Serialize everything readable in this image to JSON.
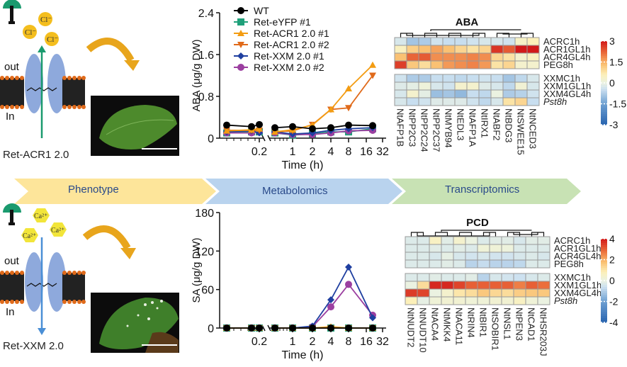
{
  "workflow": {
    "stages": [
      {
        "label": "Phenotype",
        "color": "#fde59a"
      },
      {
        "label": "Metabolomics",
        "color": "#b9d3ee"
      },
      {
        "label": "Transcriptomics",
        "color": "#c8e2b4"
      }
    ]
  },
  "panels": {
    "top": {
      "construct": "Ret-ACR1 2.0",
      "ion": "Cl",
      "ion_charge": "-",
      "out_label": "out",
      "in_label": "In",
      "arrow_color": "#1a9a6e",
      "ion_color": "#f4be1e"
    },
    "bottom": {
      "construct": "Ret-XXM 2.0",
      "ion": "Ca",
      "ion_charge": "2+",
      "out_label": "out",
      "in_label": "In",
      "arrow_color": "#4a8fd6",
      "ion_color": "#f2e53a"
    }
  },
  "chart_data": [
    {
      "type": "line",
      "title": "",
      "ylabel": "ABA (μg/g DW)",
      "xlabel": "Time (h)",
      "ylim": [
        0,
        2.4
      ],
      "yticks": [
        "0",
        "0.8",
        "1.6",
        "2.4"
      ],
      "xticks": [
        "0.2",
        "1",
        "2",
        "4",
        "8",
        "16",
        "32"
      ],
      "x": [
        "0",
        "0.1",
        "0.2",
        "0.5",
        "1",
        "2",
        "4",
        "8",
        "24"
      ],
      "legend": "top-left",
      "series": [
        {
          "name": "WT",
          "color": "#000000",
          "marker": "circle",
          "values": [
            0.25,
            0.22,
            0.26,
            0.2,
            0.22,
            0.18,
            0.2,
            0.25,
            0.24
          ]
        },
        {
          "name": "Ret-eYFP #1",
          "color": "#1fa07a",
          "marker": "square",
          "values": [
            0.1,
            0.12,
            0.12,
            0.1,
            0.06,
            0.08,
            0.12,
            0.12,
            0.18
          ]
        },
        {
          "name": "Ret-ACR1 2.0 #1",
          "color": "#f39c12",
          "marker": "triangle-up",
          "values": [
            0.14,
            0.16,
            0.18,
            0.12,
            0.16,
            0.25,
            0.55,
            0.95,
            1.4
          ]
        },
        {
          "name": "Ret-ACR1 2.0 #2",
          "color": "#e06a1a",
          "marker": "triangle-down",
          "values": [
            0.15,
            0.15,
            0.15,
            0.12,
            0.14,
            0.26,
            0.55,
            0.58,
            1.2
          ]
        },
        {
          "name": "Ret-XXM 2.0 #1",
          "color": "#1f3fa0",
          "marker": "diamond",
          "values": [
            0.12,
            0.14,
            0.1,
            0.12,
            0.08,
            0.1,
            0.15,
            0.18,
            0.2
          ]
        },
        {
          "name": "Ret-XXM 2.0 #2",
          "color": "#9b3fa0",
          "marker": "circle",
          "values": [
            0.1,
            0.1,
            0.12,
            0.1,
            0.07,
            0.07,
            0.1,
            0.14,
            0.15
          ]
        }
      ]
    },
    {
      "type": "line",
      "title": "",
      "ylabel": "SA (μg/g DW)",
      "xlabel": "Time (h)",
      "ylim": [
        0,
        180
      ],
      "yticks": [
        "0",
        "60",
        "120",
        "180"
      ],
      "xticks": [
        "0.2",
        "1",
        "2",
        "4",
        "8",
        "16",
        "32"
      ],
      "x": [
        "0",
        "0.1",
        "0.2",
        "0.5",
        "1",
        "2",
        "4",
        "8",
        "24"
      ],
      "series": [
        {
          "name": "WT",
          "color": "#000000",
          "marker": "circle",
          "values": [
            0,
            0,
            0,
            0,
            0,
            0,
            0,
            0,
            0
          ]
        },
        {
          "name": "Ret-eYFP #1",
          "color": "#1fa07a",
          "marker": "square",
          "values": [
            0,
            0,
            0,
            0,
            0,
            0,
            0,
            0,
            0
          ]
        },
        {
          "name": "Ret-ACR1 2.0 #1",
          "color": "#f39c12",
          "marker": "triangle-up",
          "values": [
            0,
            0,
            0,
            0,
            0,
            0,
            2,
            0,
            0
          ]
        },
        {
          "name": "Ret-ACR1 2.0 #2",
          "color": "#e06a1a",
          "marker": "triangle-down",
          "values": [
            0,
            0,
            0,
            0,
            0,
            0,
            0,
            0,
            0
          ]
        },
        {
          "name": "Ret-XXM 2.0 #1",
          "color": "#1f3fa0",
          "marker": "diamond",
          "values": [
            0,
            0,
            0,
            0,
            0,
            3,
            44,
            95,
            16
          ]
        },
        {
          "name": "Ret-XXM 2.0 #2",
          "color": "#9b3fa0",
          "marker": "circle",
          "values": [
            0,
            0,
            0,
            0,
            0,
            2,
            33,
            68,
            20
          ]
        }
      ]
    },
    {
      "type": "heatmap",
      "title": "ABA",
      "rows": [
        "ACRC1h",
        "ACR1GL1h",
        "ACR4GL4h",
        "PEG8h",
        "XXMC1h",
        "XXM1GL1h",
        "XXM4GL4h",
        "Pst8h"
      ],
      "row_groups": [
        4,
        4
      ],
      "cols": [
        "NtAFP1B",
        "NtPP2C3",
        "NtPP2C24",
        "NtPP2C37",
        "NtMYB94",
        "NtEDL3",
        "NtAFP1A",
        "NtIRX1",
        "NtABF2",
        "NtBDG3",
        "NtSWEE15",
        "NtNCED3"
      ],
      "colorbar": {
        "min": -3,
        "max": 3,
        "ticks": [
          "3",
          "1.5",
          "0",
          "-1.5",
          "-3"
        ]
      },
      "values": [
        [
          -0.3,
          -0.9,
          -0.8,
          -0.4,
          -0.5,
          -0.5,
          -0.4,
          -0.3,
          -0.3,
          -0.4,
          0.4,
          0.6
        ],
        [
          0.5,
          1.1,
          1.3,
          1.6,
          1.3,
          1.0,
          0.8,
          1.0,
          2.7,
          2.3,
          3.0,
          3.0
        ],
        [
          1.3,
          2.2,
          2.3,
          1.8,
          1.8,
          1.8,
          1.9,
          1.8,
          1.0,
          0.8,
          0.3,
          0.5
        ],
        [
          2.6,
          1.2,
          0.9,
          1.3,
          1.7,
          1.8,
          1.9,
          1.7,
          0.8,
          1.0,
          0.3,
          0.3
        ],
        [
          -0.4,
          -0.8,
          -0.8,
          -0.5,
          -0.5,
          -0.6,
          -0.5,
          -0.4,
          -0.5,
          -0.9,
          -0.6,
          -0.3
        ],
        [
          -0.2,
          -0.1,
          0.1,
          -0.3,
          -0.4,
          0.3,
          0.3,
          -0.2,
          -0.3,
          -0.6,
          0.2,
          -0.3
        ],
        [
          -0.3,
          0.3,
          -0.1,
          -1.0,
          -0.9,
          -1.1,
          -0.5,
          -0.6,
          0.0,
          -0.8,
          -0.7,
          -0.4
        ],
        [
          -0.3,
          -0.5,
          -0.4,
          -0.2,
          -0.2,
          -0.2,
          -0.4,
          -0.6,
          -0.3,
          0.8,
          1.0,
          -0.5
        ]
      ]
    },
    {
      "type": "heatmap",
      "title": "PCD",
      "rows": [
        "ACRC1h",
        "ACR1GL1h",
        "ACR4GL4h",
        "PEG8h",
        "XXMC1h",
        "XXM1GL1h",
        "XXM4GL4h",
        "Pst8h"
      ],
      "row_groups": [
        4,
        4
      ],
      "cols": [
        "NtNUDT2",
        "NtNUDT10",
        "NtACA4",
        "NtMKK4",
        "NtACA11",
        "NtRIN4",
        "NtBIR1",
        "NtSOBIR1",
        "NtNSL1",
        "NtPEN3",
        "NtCAD1",
        "NtHSR203J"
      ],
      "colorbar": {
        "min": -4,
        "max": 4,
        "ticks": [
          "4",
          "2",
          "0",
          "-2",
          "-4"
        ]
      },
      "values": [
        [
          -0.3,
          -0.3,
          0.6,
          -0.2,
          0.4,
          0.0,
          -0.3,
          -0.2,
          -0.2,
          -0.4,
          -0.2,
          -0.2
        ],
        [
          -0.3,
          -0.3,
          -0.2,
          -0.3,
          -0.2,
          -0.3,
          0.2,
          0.2,
          0.1,
          -0.3,
          -0.3,
          -0.3
        ],
        [
          -0.3,
          -0.3,
          -0.4,
          -0.1,
          -0.4,
          -0.5,
          -0.4,
          -0.5,
          -0.5,
          -0.4,
          -0.3,
          -0.4
        ],
        [
          -0.3,
          -0.3,
          -0.3,
          -0.2,
          -0.3,
          -0.9,
          -0.7,
          -0.9,
          -0.9,
          -0.8,
          -0.3,
          -0.3
        ],
        [
          -0.3,
          -0.3,
          -0.2,
          -0.3,
          -0.3,
          -0.2,
          -0.9,
          -0.4,
          -0.5,
          -0.6,
          -0.4,
          -0.3
        ],
        [
          0.0,
          1.2,
          3.8,
          3.8,
          3.4,
          3.0,
          3.0,
          3.0,
          3.0,
          2.6,
          3.0,
          2.8
        ],
        [
          3.5,
          3.4,
          0.0,
          0.4,
          1.0,
          1.2,
          1.6,
          1.3,
          1.2,
          1.5,
          1.6,
          1.6
        ],
        [
          0.8,
          -0.1,
          0.2,
          0.3,
          0.3,
          0.2,
          0.2,
          0.3,
          0.3,
          0.6,
          0.2,
          0.0
        ]
      ]
    }
  ]
}
